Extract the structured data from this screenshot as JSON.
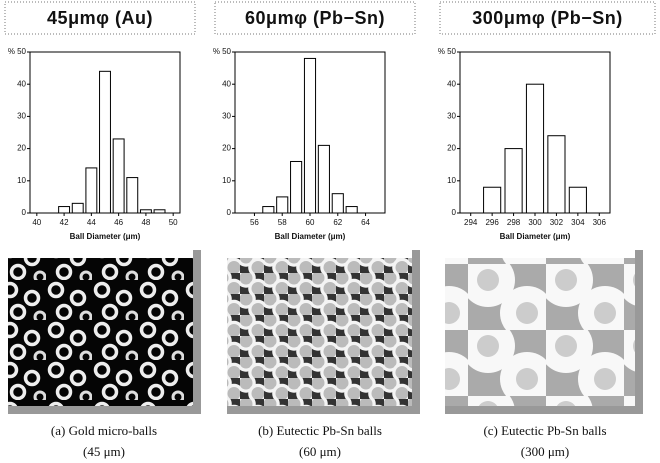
{
  "chart_data": [
    {
      "type": "bar",
      "title": "45μmφ (Au)",
      "ylabel": "%",
      "xlabel": "Ball Diameter (μm)",
      "x": [
        42,
        43,
        44,
        45,
        46,
        47,
        48,
        49
      ],
      "values": [
        2,
        3,
        14,
        44,
        23,
        11,
        1,
        1
      ],
      "xlim": [
        39.5,
        50.5
      ],
      "xticks": [
        40,
        42,
        44,
        46,
        48,
        50
      ],
      "ylim": [
        0,
        50
      ],
      "yticks": [
        0,
        10,
        20,
        30,
        40,
        50
      ],
      "color": "#ffffff",
      "caption": [
        "(a) Gold micro-balls",
        "(45 μm)"
      ]
    },
    {
      "type": "bar",
      "title": "60μmφ (Pb−Sn)",
      "ylabel": "%",
      "xlabel": "Ball Diameter (μm)",
      "x": [
        57,
        58,
        59,
        60,
        61,
        62,
        63
      ],
      "values": [
        2,
        5,
        16,
        48,
        21,
        6,
        2
      ],
      "xlim": [
        54.6,
        65.4
      ],
      "xticks": [
        56,
        58,
        60,
        62,
        64
      ],
      "ylim": [
        0,
        50
      ],
      "yticks": [
        0,
        10,
        20,
        30,
        40,
        50
      ],
      "color": "#ffffff",
      "caption": [
        "(b) Eutectic Pb-Sn balls",
        "(60 μm)"
      ]
    },
    {
      "type": "bar",
      "title": "300μmφ (Pb−Sn)",
      "ylabel": "%",
      "xlabel": "Ball Diameter (μm)",
      "x": [
        296,
        298,
        300,
        302,
        304
      ],
      "values": [
        8,
        20,
        40,
        24,
        8
      ],
      "xlim": [
        293,
        307
      ],
      "xticks": [
        294,
        296,
        298,
        300,
        302,
        304,
        306
      ],
      "ylim": [
        0,
        50
      ],
      "yticks": [
        0,
        10,
        20,
        30,
        40,
        50
      ],
      "color": "#ffffff",
      "caption": [
        "(c) Eutectic Pb-Sn balls",
        "(300 μm)"
      ]
    }
  ]
}
